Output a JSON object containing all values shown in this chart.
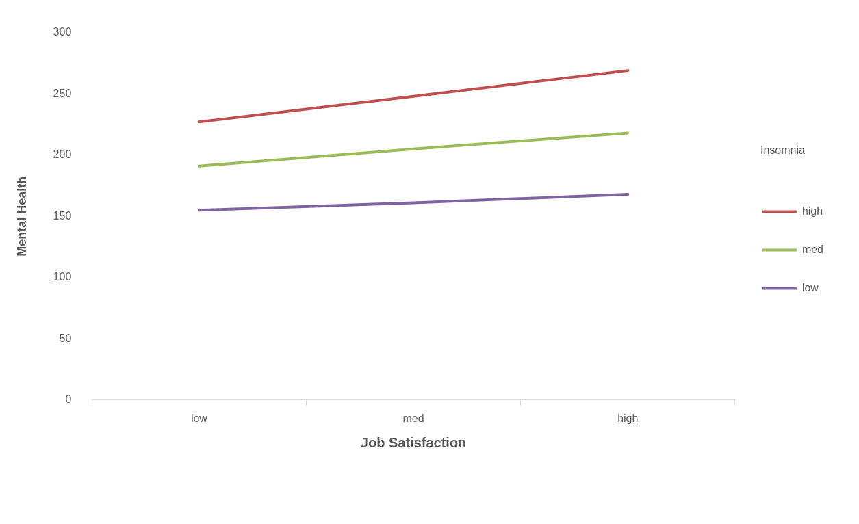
{
  "chart_data": {
    "type": "line",
    "xlabel": "Job Satisfaction",
    "ylabel": "Mental Health",
    "legend_title": "Insomnia",
    "categories": [
      "low",
      "med",
      "high"
    ],
    "series": [
      {
        "name": "high",
        "color": "#c0504d",
        "values": [
          227,
          248,
          269
        ]
      },
      {
        "name": "med",
        "color": "#9bbb59",
        "values": [
          191,
          205,
          218
        ]
      },
      {
        "name": "low",
        "color": "#8064a2",
        "values": [
          155,
          161,
          168
        ]
      }
    ],
    "ylim": [
      0,
      300
    ],
    "yticks": [
      0,
      50,
      100,
      150,
      200,
      250,
      300
    ],
    "grid": false,
    "legend": "right",
    "marker": "none",
    "line_style": "solid"
  }
}
